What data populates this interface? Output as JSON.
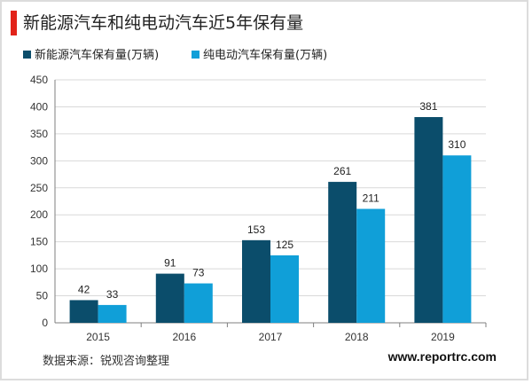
{
  "header": {
    "title": "新能源汽车和纯电动汽车近5年保有量"
  },
  "footer": {
    "source": "数据来源：锐观咨询整理",
    "website": "www.reportrc.com"
  },
  "colors": {
    "accent": "#e2231a",
    "series1": "#0b4d6b",
    "series2": "#109fd8",
    "grid": "#d9d9d9",
    "axis": "#7f7f7f"
  },
  "chart_data": {
    "type": "bar",
    "title": "",
    "xlabel": "",
    "ylabel": "",
    "categories": [
      "2015",
      "2016",
      "2017",
      "2018",
      "2019"
    ],
    "series": [
      {
        "name": "新能源汽车保有量(万辆)",
        "values": [
          42,
          91,
          153,
          261,
          381
        ]
      },
      {
        "name": "纯电动汽车保有量(万辆)",
        "values": [
          33,
          73,
          125,
          211,
          310
        ]
      }
    ],
    "ylim": [
      0,
      450
    ],
    "yticks": [
      0,
      50,
      100,
      150,
      200,
      250,
      300,
      350,
      400,
      450
    ],
    "grid": true,
    "legend_position": "top-left",
    "data_labels": true
  }
}
